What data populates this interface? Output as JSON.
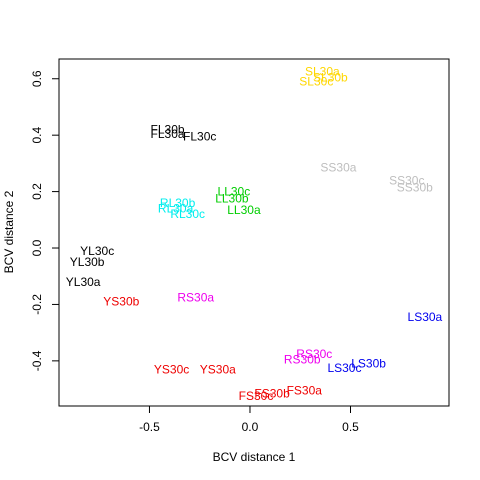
{
  "chart_data": {
    "type": "scatter",
    "title": "",
    "xlabel": "BCV distance 1",
    "ylabel": "BCV distance 2",
    "xlim": [
      -0.95,
      0.99
    ],
    "ylim": [
      -0.56,
      0.67
    ],
    "xticks": [
      -0.5,
      0.0,
      0.5
    ],
    "xtick_labels": [
      "-0.5",
      "0.0",
      "0.5"
    ],
    "yticks": [
      -0.4,
      -0.2,
      0.0,
      0.2,
      0.4,
      0.6
    ],
    "ytick_labels": [
      "-0.4",
      "-0.2",
      "0.0",
      "0.2",
      "0.4",
      "0.6"
    ],
    "grid": false,
    "legend": "none",
    "points": [
      {
        "label": "SL30a",
        "x": 0.36,
        "y": 0.625,
        "color": "#ffd700"
      },
      {
        "label": "SL30b",
        "x": 0.4,
        "y": 0.605,
        "color": "#ffd700"
      },
      {
        "label": "SL30c",
        "x": 0.33,
        "y": 0.59,
        "color": "#ffd700"
      },
      {
        "label": "FL30b",
        "x": -0.41,
        "y": 0.42,
        "color": "#000000"
      },
      {
        "label": "FL30a",
        "x": -0.41,
        "y": 0.405,
        "color": "#000000"
      },
      {
        "label": "FL30c",
        "x": -0.25,
        "y": 0.395,
        "color": "#000000"
      },
      {
        "label": "SS30a",
        "x": 0.44,
        "y": 0.285,
        "color": "#bebebe"
      },
      {
        "label": "SS30c",
        "x": 0.78,
        "y": 0.24,
        "color": "#bebebe"
      },
      {
        "label": "SS30b",
        "x": 0.82,
        "y": 0.215,
        "color": "#bebebe"
      },
      {
        "label": "LL30c",
        "x": -0.08,
        "y": 0.2,
        "color": "#00cd00"
      },
      {
        "label": "LL30b",
        "x": -0.09,
        "y": 0.175,
        "color": "#00cd00"
      },
      {
        "label": "LL30a",
        "x": -0.03,
        "y": 0.135,
        "color": "#00cd00"
      },
      {
        "label": "RL30b",
        "x": -0.36,
        "y": 0.16,
        "color": "#00eeee"
      },
      {
        "label": "RL30a",
        "x": -0.37,
        "y": 0.14,
        "color": "#00eeee"
      },
      {
        "label": "RL30c",
        "x": -0.31,
        "y": 0.12,
        "color": "#00eeee"
      },
      {
        "label": "YL30c",
        "x": -0.76,
        "y": -0.01,
        "color": "#000000"
      },
      {
        "label": "YL30b",
        "x": -0.81,
        "y": -0.05,
        "color": "#000000"
      },
      {
        "label": "YL30a",
        "x": -0.83,
        "y": -0.12,
        "color": "#000000"
      },
      {
        "label": "YS30b",
        "x": -0.64,
        "y": -0.19,
        "color": "#ee0000"
      },
      {
        "label": "RS30a",
        "x": -0.27,
        "y": -0.175,
        "color": "#ee00ee"
      },
      {
        "label": "LS30a",
        "x": 0.87,
        "y": -0.245,
        "color": "#0000ee"
      },
      {
        "label": "RS30c",
        "x": 0.32,
        "y": -0.375,
        "color": "#ee00ee"
      },
      {
        "label": "RS30b",
        "x": 0.26,
        "y": -0.395,
        "color": "#ee00ee"
      },
      {
        "label": "LS30b",
        "x": 0.59,
        "y": -0.41,
        "color": "#0000ee"
      },
      {
        "label": "LS30c",
        "x": 0.47,
        "y": -0.425,
        "color": "#0000ee"
      },
      {
        "label": "YS30c",
        "x": -0.39,
        "y": -0.43,
        "color": "#ee0000"
      },
      {
        "label": "YS30a",
        "x": -0.16,
        "y": -0.43,
        "color": "#ee0000"
      },
      {
        "label": "FS30a",
        "x": 0.27,
        "y": -0.505,
        "color": "#ee0000"
      },
      {
        "label": "FS30b",
        "x": 0.11,
        "y": -0.515,
        "color": "#ee0000"
      },
      {
        "label": "FS30c",
        "x": 0.03,
        "y": -0.525,
        "color": "#ee0000"
      }
    ]
  }
}
